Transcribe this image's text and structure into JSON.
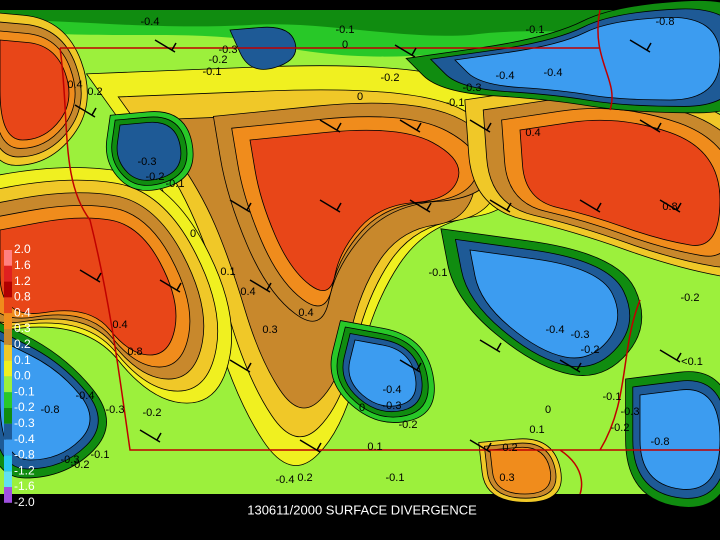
{
  "caption": "130611/2000 SURFACE DIVERGENCE",
  "legend": {
    "labels": [
      "2.0",
      "1.6",
      "1.2",
      "0.8",
      "0.4",
      "0.3",
      "0.2",
      "0.1",
      "0.0",
      "-0.1",
      "-0.2",
      "-0.3",
      "-0.4",
      "-0.8",
      "-1.2",
      "-1.6",
      "-2.0"
    ],
    "colors": [
      "#ff8080",
      "#e02020",
      "#b00000",
      "#e84618",
      "#f08c1c",
      "#c8882c",
      "#f0c828",
      "#f0f020",
      "#9cf03c",
      "#28c828",
      "#108c10",
      "#1e5a96",
      "#3c9cf0",
      "#28c8f0",
      "#60e0f0",
      "#a050e0"
    ]
  },
  "contour_labels": [
    "-0.4",
    "-0.1",
    "0",
    "-0.1",
    "-0.8",
    "-0.3",
    "-0.2",
    "-0.1",
    "-0.2",
    "-0.4",
    "-0.4",
    "-0.3",
    "0",
    "-0.1",
    "0.4",
    "0.2",
    "0.4",
    "-0.3",
    "-0.2",
    "-0.1",
    "0",
    "0.8",
    "0.1",
    "-0.1",
    "-0.2",
    "0.4",
    "0.4",
    "0.4",
    "0.3",
    "-0.4",
    "-0.3",
    "-0.2",
    "0.8",
    "<0.1",
    "-0.4",
    "-0.8",
    "-0.3",
    "-0.2",
    "-0.4",
    "0",
    "-0.3",
    "-0.2",
    "0",
    "-0.1",
    "-0.3",
    "-0.2",
    "0.1",
    "-0.8",
    "0.1",
    "0.2",
    "-0.1",
    "-0.3",
    "-0.2",
    "-0.1",
    "0.3",
    "-0.4",
    "0.2"
  ]
}
